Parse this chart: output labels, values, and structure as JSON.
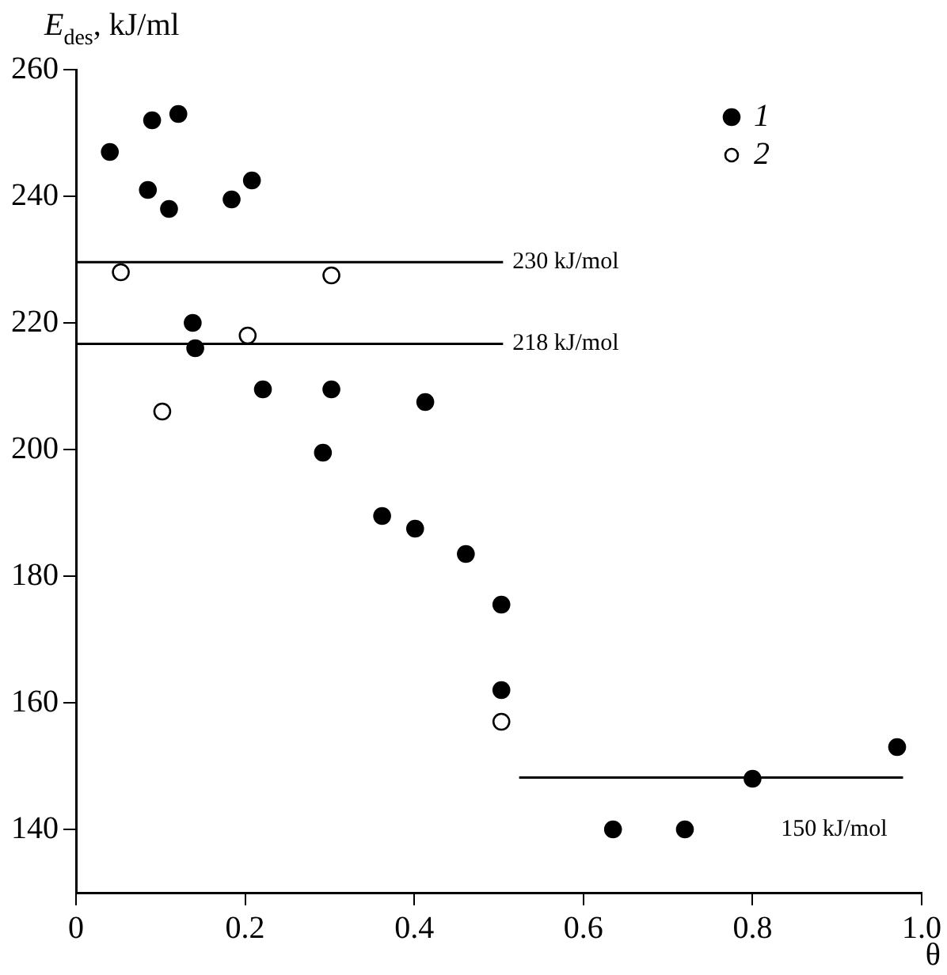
{
  "chart_data": {
    "type": "scatter",
    "ylabel": "E$_{des}$, kJ/ml",
    "xlabel": "θ",
    "xlim": [
      0,
      1.0
    ],
    "xticks": [
      0,
      0.2,
      0.4,
      0.6,
      0.8,
      {
        "value": 1.0,
        "label": "1.0"
      }
    ],
    "ylim": [
      130,
      260
    ],
    "yticks": [
      140,
      160,
      180,
      200,
      220,
      240,
      260
    ],
    "grid": false,
    "legend": "top right",
    "marker": "circle",
    "series": [
      {
        "name": "1",
        "color": "#000000",
        "x": [
          0.04,
          0.09,
          0.121,
          0.085,
          0.11,
          0.184,
          0.208,
          0.138,
          0.141,
          0.221,
          0.302,
          0.413,
          0.292,
          0.362,
          0.401,
          0.461,
          0.503,
          0.503,
          0.635,
          0.72,
          0.8,
          0.971
        ],
        "values": [
          247,
          252,
          253,
          241,
          238,
          239.5,
          242.5,
          220,
          216,
          209.5,
          209.5,
          207.5,
          199.5,
          189.5,
          187.5,
          183.5,
          175.5,
          162,
          140,
          140,
          148,
          153
        ]
      },
      {
        "name": "2",
        "color": "#000000",
        "x": [
          0.053,
          0.302,
          0.203,
          0.102,
          0.503
        ],
        "values": [
          228,
          227.5,
          218,
          206,
          157
        ]
      },
      {
        "type": "line",
        "name": "230 kJ/mol",
        "color": "#000000",
        "marker": "none",
        "x": [
          0,
          0.505
        ],
        "values": [
          229.6,
          229.6
        ]
      },
      {
        "type": "line",
        "name": "218 kJ/mol",
        "color": "#000000",
        "marker": "none",
        "x": [
          0,
          0.505
        ],
        "values": [
          216.7,
          216.7
        ]
      },
      {
        "type": "line",
        "name": "150 kJ/mol",
        "color": "#000000",
        "marker": "none",
        "x": [
          0.524,
          0.978
        ],
        "values": [
          148.2,
          148.2
        ]
      }
    ]
  }
}
